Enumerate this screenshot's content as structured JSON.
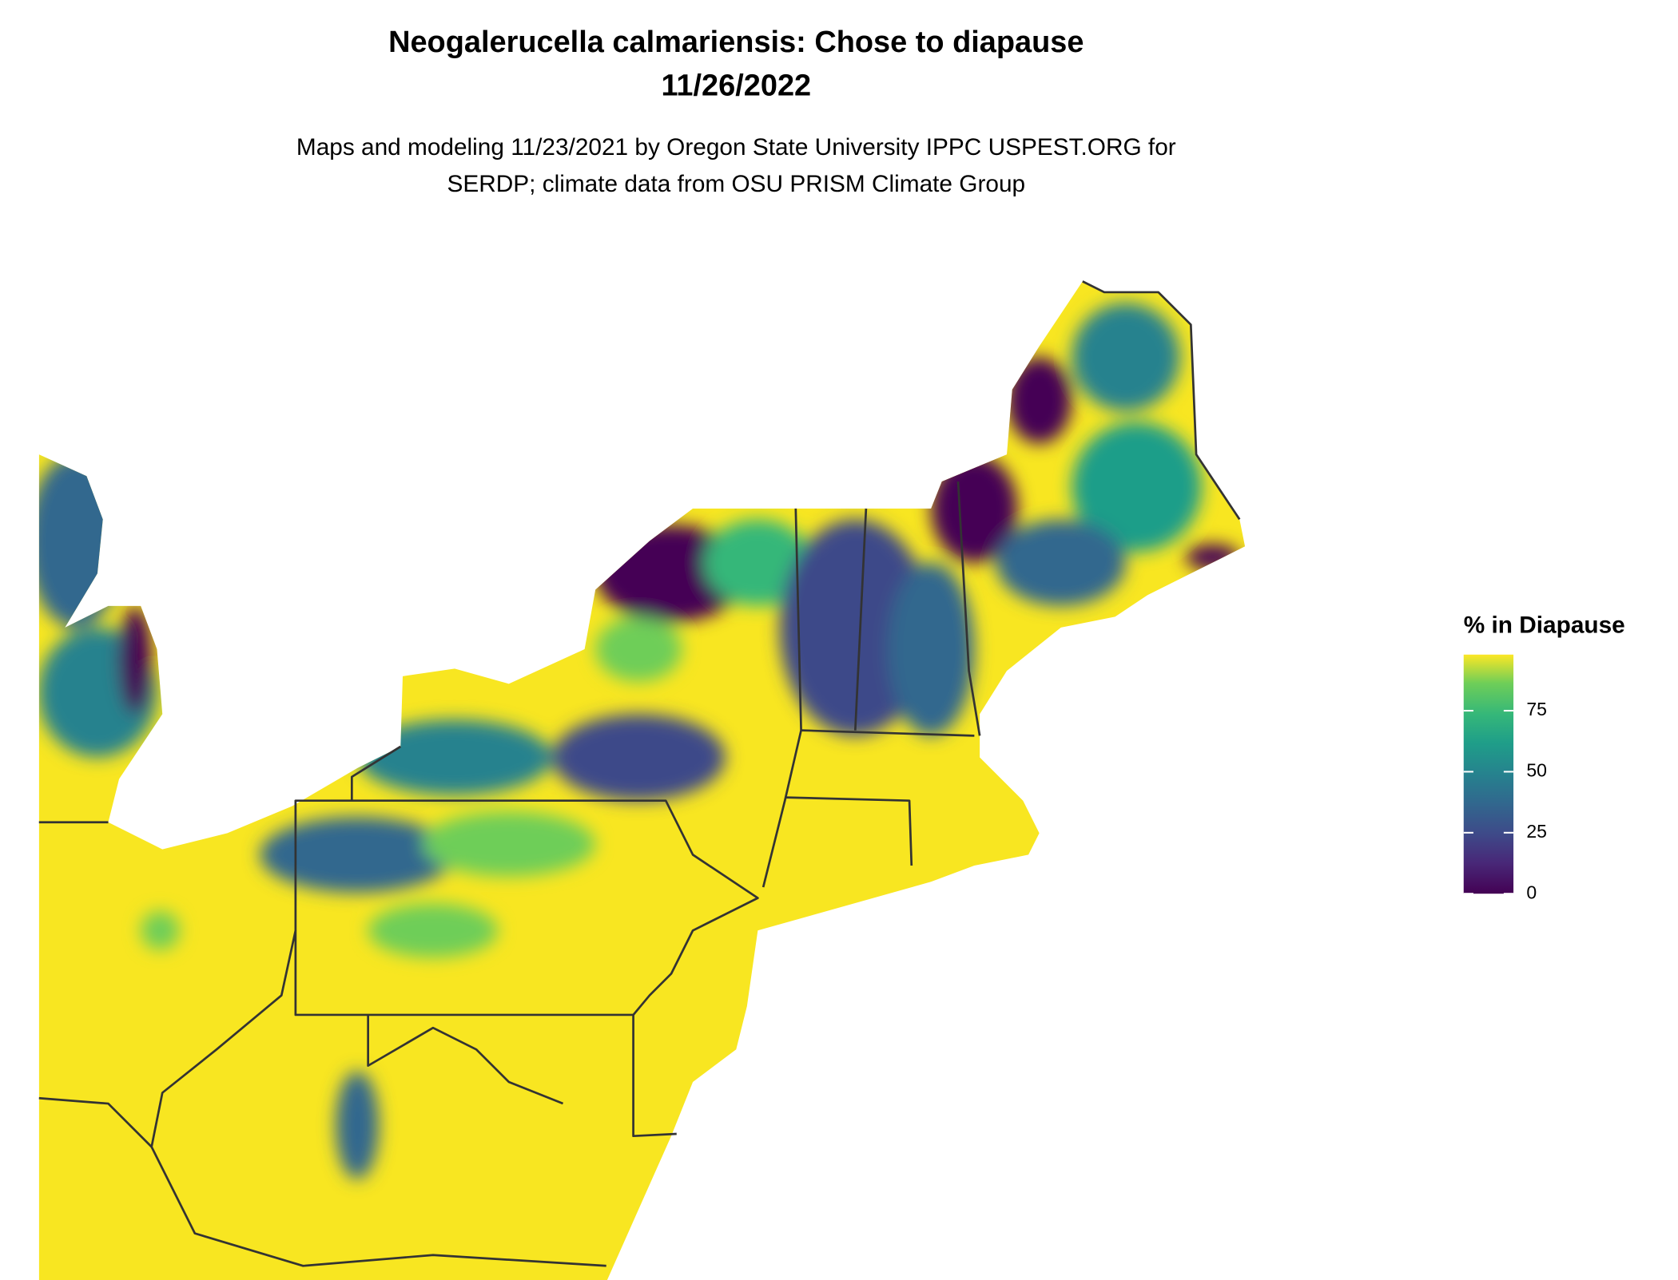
{
  "title": "Neogalerucella calmariensis: Chose to diapause",
  "date": "11/26/2022",
  "subtitle": [
    "Maps and modeling 11/23/2021 by Oregon State University IPPC USPEST.ORG for",
    "SERDP; climate data from OSU PRISM Climate Group"
  ],
  "legend": {
    "title": "% in Diapause",
    "limits": [
      0,
      98
    ],
    "ticks": [
      0,
      25,
      50,
      75
    ]
  }
}
